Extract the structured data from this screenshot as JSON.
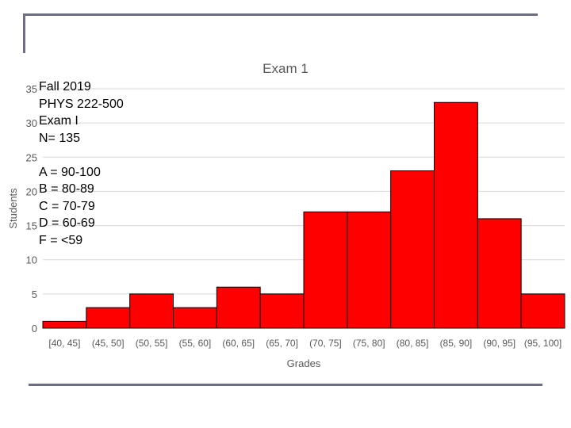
{
  "chart_data": {
    "type": "bar",
    "title": "Exam 1",
    "xlabel": "Grades",
    "ylabel": "Students",
    "categories": [
      "[40, 45]",
      "(45, 50]",
      "(50, 55]",
      "(55, 60]",
      "(60, 65]",
      "(65, 70]",
      "(70, 75]",
      "(75, 80]",
      "(80, 85]",
      "(85, 90]",
      "(90, 95]",
      "(95, 100]"
    ],
    "values": [
      1,
      3,
      5,
      3,
      6,
      5,
      17,
      17,
      23,
      33,
      16,
      5
    ],
    "ylim": [
      0,
      35
    ],
    "yticks": [
      0,
      5,
      10,
      15,
      20,
      25,
      30,
      35
    ],
    "grid": true,
    "bar_color": "#ff0000",
    "annotations": [
      "Fall 2019",
      "PHYS 222-500",
      "Exam I",
      "N= 135",
      "A = 90-100",
      "B = 80-89",
      "C = 70-79",
      "D = 60-69",
      "F = <59"
    ]
  },
  "colors": {
    "frame_lines": "#6d6e86",
    "gridline": "#d9d9d9",
    "axis_text": "#595959"
  }
}
